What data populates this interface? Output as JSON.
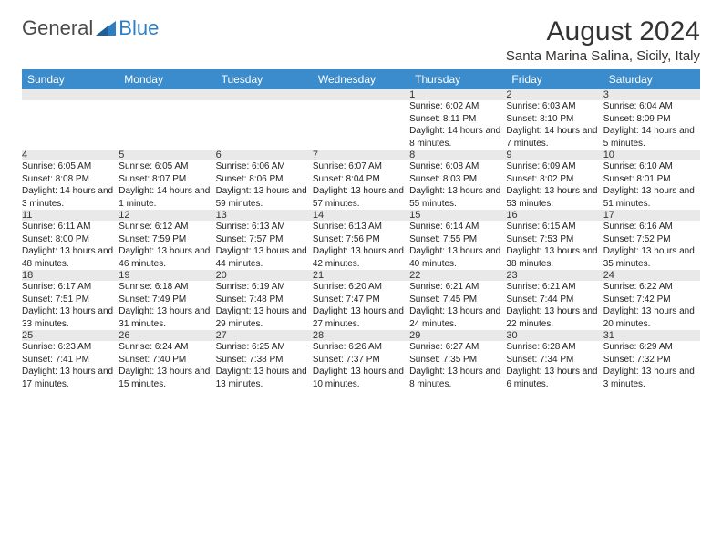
{
  "brand": {
    "part1": "General",
    "part2": "Blue"
  },
  "title": "August 2024",
  "location": "Santa Marina Salina, Sicily, Italy",
  "colors": {
    "header_bg": "#3a8ccc",
    "header_text": "#ffffff",
    "daynum_bg": "#e9e9e9",
    "row_border": "#3a8ccc",
    "brand_gray": "#4a4a4a",
    "brand_blue": "#2f7ec2"
  },
  "daysOfWeek": [
    "Sunday",
    "Monday",
    "Tuesday",
    "Wednesday",
    "Thursday",
    "Friday",
    "Saturday"
  ],
  "weeks": [
    [
      null,
      null,
      null,
      null,
      {
        "n": "1",
        "sr": "6:02 AM",
        "ss": "8:11 PM",
        "dl": "14 hours and 8 minutes."
      },
      {
        "n": "2",
        "sr": "6:03 AM",
        "ss": "8:10 PM",
        "dl": "14 hours and 7 minutes."
      },
      {
        "n": "3",
        "sr": "6:04 AM",
        "ss": "8:09 PM",
        "dl": "14 hours and 5 minutes."
      }
    ],
    [
      {
        "n": "4",
        "sr": "6:05 AM",
        "ss": "8:08 PM",
        "dl": "14 hours and 3 minutes."
      },
      {
        "n": "5",
        "sr": "6:05 AM",
        "ss": "8:07 PM",
        "dl": "14 hours and 1 minute."
      },
      {
        "n": "6",
        "sr": "6:06 AM",
        "ss": "8:06 PM",
        "dl": "13 hours and 59 minutes."
      },
      {
        "n": "7",
        "sr": "6:07 AM",
        "ss": "8:04 PM",
        "dl": "13 hours and 57 minutes."
      },
      {
        "n": "8",
        "sr": "6:08 AM",
        "ss": "8:03 PM",
        "dl": "13 hours and 55 minutes."
      },
      {
        "n": "9",
        "sr": "6:09 AM",
        "ss": "8:02 PM",
        "dl": "13 hours and 53 minutes."
      },
      {
        "n": "10",
        "sr": "6:10 AM",
        "ss": "8:01 PM",
        "dl": "13 hours and 51 minutes."
      }
    ],
    [
      {
        "n": "11",
        "sr": "6:11 AM",
        "ss": "8:00 PM",
        "dl": "13 hours and 48 minutes."
      },
      {
        "n": "12",
        "sr": "6:12 AM",
        "ss": "7:59 PM",
        "dl": "13 hours and 46 minutes."
      },
      {
        "n": "13",
        "sr": "6:13 AM",
        "ss": "7:57 PM",
        "dl": "13 hours and 44 minutes."
      },
      {
        "n": "14",
        "sr": "6:13 AM",
        "ss": "7:56 PM",
        "dl": "13 hours and 42 minutes."
      },
      {
        "n": "15",
        "sr": "6:14 AM",
        "ss": "7:55 PM",
        "dl": "13 hours and 40 minutes."
      },
      {
        "n": "16",
        "sr": "6:15 AM",
        "ss": "7:53 PM",
        "dl": "13 hours and 38 minutes."
      },
      {
        "n": "17",
        "sr": "6:16 AM",
        "ss": "7:52 PM",
        "dl": "13 hours and 35 minutes."
      }
    ],
    [
      {
        "n": "18",
        "sr": "6:17 AM",
        "ss": "7:51 PM",
        "dl": "13 hours and 33 minutes."
      },
      {
        "n": "19",
        "sr": "6:18 AM",
        "ss": "7:49 PM",
        "dl": "13 hours and 31 minutes."
      },
      {
        "n": "20",
        "sr": "6:19 AM",
        "ss": "7:48 PM",
        "dl": "13 hours and 29 minutes."
      },
      {
        "n": "21",
        "sr": "6:20 AM",
        "ss": "7:47 PM",
        "dl": "13 hours and 27 minutes."
      },
      {
        "n": "22",
        "sr": "6:21 AM",
        "ss": "7:45 PM",
        "dl": "13 hours and 24 minutes."
      },
      {
        "n": "23",
        "sr": "6:21 AM",
        "ss": "7:44 PM",
        "dl": "13 hours and 22 minutes."
      },
      {
        "n": "24",
        "sr": "6:22 AM",
        "ss": "7:42 PM",
        "dl": "13 hours and 20 minutes."
      }
    ],
    [
      {
        "n": "25",
        "sr": "6:23 AM",
        "ss": "7:41 PM",
        "dl": "13 hours and 17 minutes."
      },
      {
        "n": "26",
        "sr": "6:24 AM",
        "ss": "7:40 PM",
        "dl": "13 hours and 15 minutes."
      },
      {
        "n": "27",
        "sr": "6:25 AM",
        "ss": "7:38 PM",
        "dl": "13 hours and 13 minutes."
      },
      {
        "n": "28",
        "sr": "6:26 AM",
        "ss": "7:37 PM",
        "dl": "13 hours and 10 minutes."
      },
      {
        "n": "29",
        "sr": "6:27 AM",
        "ss": "7:35 PM",
        "dl": "13 hours and 8 minutes."
      },
      {
        "n": "30",
        "sr": "6:28 AM",
        "ss": "7:34 PM",
        "dl": "13 hours and 6 minutes."
      },
      {
        "n": "31",
        "sr": "6:29 AM",
        "ss": "7:32 PM",
        "dl": "13 hours and 3 minutes."
      }
    ]
  ],
  "labels": {
    "sunrise": "Sunrise:",
    "sunset": "Sunset:",
    "daylight": "Daylight:"
  }
}
